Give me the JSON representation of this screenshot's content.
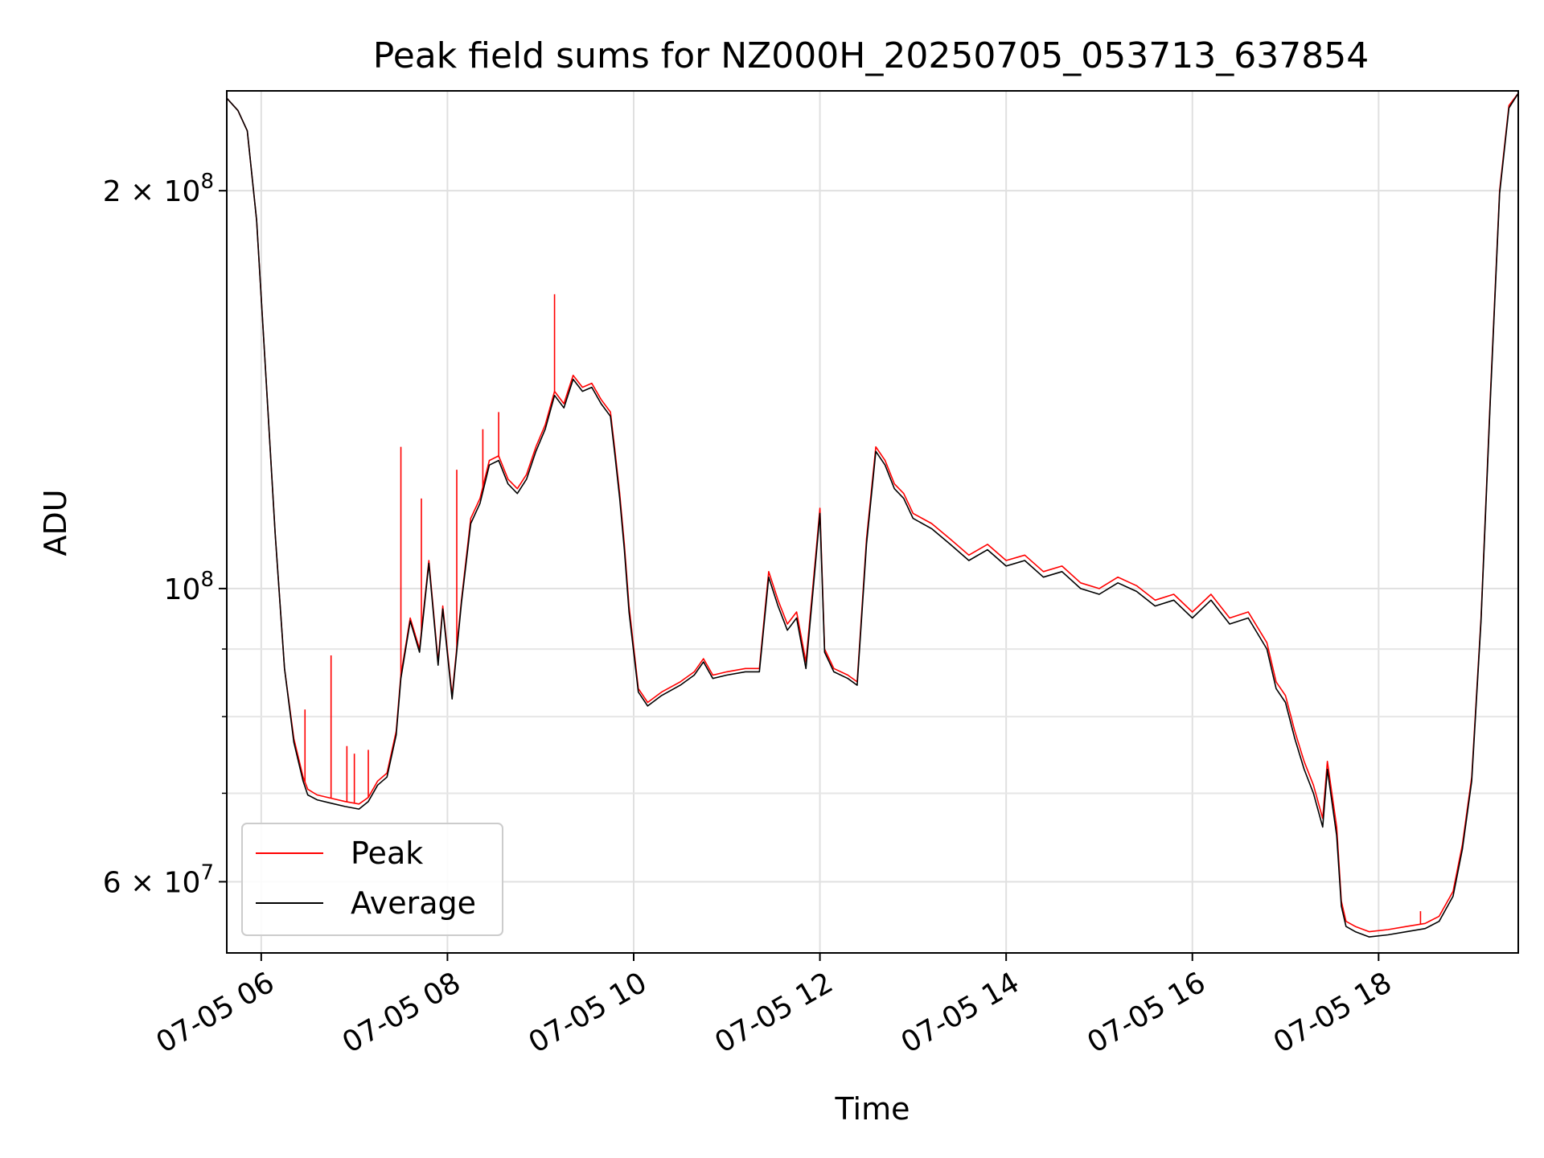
{
  "chart_data": {
    "type": "line",
    "title": "Peak field sums for NZ000H_20250705_053713_637854",
    "xlabel": "Time",
    "ylabel": "ADU",
    "x_unit": "hours of 2025-07-05 (fractional)",
    "xlim": [
      5.63,
      19.5
    ],
    "ylim": [
      53000000,
      238000000
    ],
    "yscale": "log",
    "grid": true,
    "legend_position": "lower-left",
    "x_ticks": [
      {
        "value": 6,
        "label": "07-05 06"
      },
      {
        "value": 8,
        "label": "07-05 08"
      },
      {
        "value": 10,
        "label": "07-05 10"
      },
      {
        "value": 12,
        "label": "07-05 12"
      },
      {
        "value": 14,
        "label": "07-05 14"
      },
      {
        "value": 16,
        "label": "07-05 16"
      },
      {
        "value": 18,
        "label": "07-05 18"
      }
    ],
    "y_major_ticks": [
      {
        "value": 60000000,
        "base": "6 × 10",
        "exp": "7"
      },
      {
        "value": 100000000,
        "base": "10",
        "exp": "8"
      },
      {
        "value": 200000000,
        "base": "2 × 10",
        "exp": "8"
      }
    ],
    "y_minor_ticks": [
      70000000,
      80000000,
      90000000
    ],
    "series": [
      {
        "name": "Peak",
        "color": "#ff0000",
        "points": [
          [
            5.63,
            235000000
          ],
          [
            5.75,
            230000000
          ],
          [
            5.85,
            222000000
          ],
          [
            5.95,
            190000000
          ],
          [
            6.05,
            145000000
          ],
          [
            6.15,
            110000000
          ],
          [
            6.25,
            87000000
          ],
          [
            6.35,
            77000000
          ],
          [
            6.45,
            72000000
          ],
          [
            6.5,
            70500000
          ],
          [
            6.6,
            69800000
          ],
          [
            6.75,
            69400000
          ],
          [
            6.9,
            69000000
          ],
          [
            7.05,
            68700000
          ],
          [
            7.15,
            69500000
          ],
          [
            7.25,
            71500000
          ],
          [
            7.35,
            72500000
          ],
          [
            7.45,
            78000000
          ],
          [
            7.5,
            86000000
          ],
          [
            7.6,
            95000000
          ],
          [
            7.7,
            90000000
          ],
          [
            7.8,
            105000000
          ],
          [
            7.9,
            88000000
          ],
          [
            7.95,
            97000000
          ],
          [
            8.05,
            83000000
          ],
          [
            8.15,
            98000000
          ],
          [
            8.25,
            113000000
          ],
          [
            8.35,
            117000000
          ],
          [
            8.45,
            125000000
          ],
          [
            8.55,
            126000000
          ],
          [
            8.65,
            121000000
          ],
          [
            8.75,
            119000000
          ],
          [
            8.85,
            122000000
          ],
          [
            8.95,
            128000000
          ],
          [
            9.05,
            133000000
          ],
          [
            9.15,
            141000000
          ],
          [
            9.25,
            138000000
          ],
          [
            9.35,
            145000000
          ],
          [
            9.45,
            142000000
          ],
          [
            9.55,
            143000000
          ],
          [
            9.65,
            139000000
          ],
          [
            9.75,
            136000000
          ],
          [
            9.8,
            127000000
          ],
          [
            9.85,
            118000000
          ],
          [
            9.9,
            108000000
          ],
          [
            9.95,
            97000000
          ],
          [
            10.05,
            84000000
          ],
          [
            10.15,
            82000000
          ],
          [
            10.3,
            83500000
          ],
          [
            10.5,
            85000000
          ],
          [
            10.65,
            86500000
          ],
          [
            10.75,
            88500000
          ],
          [
            10.85,
            86000000
          ],
          [
            11.0,
            86500000
          ],
          [
            11.2,
            87000000
          ],
          [
            11.35,
            87000000
          ],
          [
            11.45,
            103000000
          ],
          [
            11.55,
            98000000
          ],
          [
            11.65,
            94000000
          ],
          [
            11.75,
            96000000
          ],
          [
            11.85,
            88000000
          ],
          [
            11.95,
            105000000
          ],
          [
            12.0,
            115000000
          ],
          [
            12.05,
            90000000
          ],
          [
            12.15,
            87000000
          ],
          [
            12.3,
            86000000
          ],
          [
            12.4,
            85000000
          ],
          [
            12.5,
            109000000
          ],
          [
            12.6,
            128000000
          ],
          [
            12.7,
            125000000
          ],
          [
            12.8,
            120000000
          ],
          [
            12.9,
            118000000
          ],
          [
            13.0,
            114000000
          ],
          [
            13.2,
            112000000
          ],
          [
            13.4,
            109000000
          ],
          [
            13.6,
            106000000
          ],
          [
            13.8,
            108000000
          ],
          [
            14.0,
            105000000
          ],
          [
            14.2,
            106000000
          ],
          [
            14.4,
            103000000
          ],
          [
            14.6,
            104000000
          ],
          [
            14.8,
            101000000
          ],
          [
            15.0,
            100000000
          ],
          [
            15.2,
            102000000
          ],
          [
            15.4,
            100500000
          ],
          [
            15.6,
            98000000
          ],
          [
            15.8,
            99000000
          ],
          [
            16.0,
            96000000
          ],
          [
            16.2,
            99000000
          ],
          [
            16.4,
            95000000
          ],
          [
            16.6,
            96000000
          ],
          [
            16.8,
            91000000
          ],
          [
            16.9,
            85000000
          ],
          [
            17.0,
            83000000
          ],
          [
            17.1,
            78000000
          ],
          [
            17.2,
            74000000
          ],
          [
            17.3,
            71000000
          ],
          [
            17.4,
            67000000
          ],
          [
            17.45,
            74000000
          ],
          [
            17.55,
            66000000
          ],
          [
            17.6,
            58000000
          ],
          [
            17.65,
            56000000
          ],
          [
            17.75,
            55500000
          ],
          [
            17.9,
            55000000
          ],
          [
            18.1,
            55200000
          ],
          [
            18.3,
            55500000
          ],
          [
            18.5,
            55800000
          ],
          [
            18.65,
            56500000
          ],
          [
            18.8,
            59000000
          ],
          [
            18.9,
            64000000
          ],
          [
            19.0,
            72000000
          ],
          [
            19.1,
            95000000
          ],
          [
            19.2,
            140000000
          ],
          [
            19.3,
            200000000
          ],
          [
            19.4,
            232000000
          ],
          [
            19.5,
            237000000
          ]
        ],
        "spikes": [
          [
            6.47,
            81000000
          ],
          [
            6.75,
            89000000
          ],
          [
            6.92,
            76000000
          ],
          [
            7.0,
            75000000
          ],
          [
            7.15,
            75500000
          ],
          [
            7.5,
            128000000
          ],
          [
            7.72,
            117000000
          ],
          [
            8.1,
            123000000
          ],
          [
            8.38,
            132000000
          ],
          [
            8.55,
            136000000
          ],
          [
            9.15,
            167000000
          ],
          [
            18.45,
            57000000
          ]
        ]
      },
      {
        "name": "Average",
        "color": "#000000",
        "points": [
          [
            5.63,
            235000000
          ],
          [
            5.75,
            230000000
          ],
          [
            5.85,
            222000000
          ],
          [
            5.95,
            190000000
          ],
          [
            6.05,
            145000000
          ],
          [
            6.15,
            110000000
          ],
          [
            6.25,
            87000000
          ],
          [
            6.35,
            76500000
          ],
          [
            6.45,
            71500000
          ],
          [
            6.5,
            69800000
          ],
          [
            6.6,
            69200000
          ],
          [
            6.75,
            68800000
          ],
          [
            6.9,
            68400000
          ],
          [
            7.05,
            68100000
          ],
          [
            7.15,
            69000000
          ],
          [
            7.25,
            71000000
          ],
          [
            7.35,
            72000000
          ],
          [
            7.45,
            77500000
          ],
          [
            7.5,
            85500000
          ],
          [
            7.6,
            94500000
          ],
          [
            7.7,
            89500000
          ],
          [
            7.8,
            104500000
          ],
          [
            7.9,
            87500000
          ],
          [
            7.95,
            96500000
          ],
          [
            8.05,
            82500000
          ],
          [
            8.15,
            97500000
          ],
          [
            8.25,
            112000000
          ],
          [
            8.35,
            116000000
          ],
          [
            8.45,
            124000000
          ],
          [
            8.55,
            125000000
          ],
          [
            8.65,
            120000000
          ],
          [
            8.75,
            118000000
          ],
          [
            8.85,
            121000000
          ],
          [
            8.95,
            127000000
          ],
          [
            9.05,
            132000000
          ],
          [
            9.15,
            140000000
          ],
          [
            9.25,
            137000000
          ],
          [
            9.35,
            144000000
          ],
          [
            9.45,
            141000000
          ],
          [
            9.55,
            142000000
          ],
          [
            9.65,
            138000000
          ],
          [
            9.75,
            135000000
          ],
          [
            9.8,
            126000000
          ],
          [
            9.85,
            117000000
          ],
          [
            9.9,
            107000000
          ],
          [
            9.95,
            96000000
          ],
          [
            10.05,
            83500000
          ],
          [
            10.15,
            81500000
          ],
          [
            10.3,
            83000000
          ],
          [
            10.5,
            84500000
          ],
          [
            10.65,
            86000000
          ],
          [
            10.75,
            88000000
          ],
          [
            10.85,
            85500000
          ],
          [
            11.0,
            86000000
          ],
          [
            11.2,
            86500000
          ],
          [
            11.35,
            86500000
          ],
          [
            11.45,
            102000000
          ],
          [
            11.55,
            97000000
          ],
          [
            11.65,
            93000000
          ],
          [
            11.75,
            95000000
          ],
          [
            11.85,
            87000000
          ],
          [
            11.95,
            104000000
          ],
          [
            12.0,
            114000000
          ],
          [
            12.05,
            89500000
          ],
          [
            12.15,
            86500000
          ],
          [
            12.3,
            85500000
          ],
          [
            12.4,
            84500000
          ],
          [
            12.5,
            108000000
          ],
          [
            12.6,
            127000000
          ],
          [
            12.7,
            124000000
          ],
          [
            12.8,
            119000000
          ],
          [
            12.9,
            117000000
          ],
          [
            13.0,
            113000000
          ],
          [
            13.2,
            111000000
          ],
          [
            13.4,
            108000000
          ],
          [
            13.6,
            105000000
          ],
          [
            13.8,
            107000000
          ],
          [
            14.0,
            104000000
          ],
          [
            14.2,
            105000000
          ],
          [
            14.4,
            102000000
          ],
          [
            14.6,
            103000000
          ],
          [
            14.8,
            100000000
          ],
          [
            15.0,
            99000000
          ],
          [
            15.2,
            101000000
          ],
          [
            15.4,
            99500000
          ],
          [
            15.6,
            97000000
          ],
          [
            15.8,
            98000000
          ],
          [
            16.0,
            95000000
          ],
          [
            16.2,
            98000000
          ],
          [
            16.4,
            94000000
          ],
          [
            16.6,
            95000000
          ],
          [
            16.8,
            90000000
          ],
          [
            16.9,
            84000000
          ],
          [
            17.0,
            82000000
          ],
          [
            17.1,
            77000000
          ],
          [
            17.2,
            73000000
          ],
          [
            17.3,
            70000000
          ],
          [
            17.4,
            66000000
          ],
          [
            17.45,
            73000000
          ],
          [
            17.55,
            65000000
          ],
          [
            17.6,
            57500000
          ],
          [
            17.65,
            55500000
          ],
          [
            17.75,
            55000000
          ],
          [
            17.9,
            54500000
          ],
          [
            18.1,
            54700000
          ],
          [
            18.3,
            55000000
          ],
          [
            18.5,
            55300000
          ],
          [
            18.65,
            56000000
          ],
          [
            18.8,
            58500000
          ],
          [
            18.9,
            63500000
          ],
          [
            19.0,
            71500000
          ],
          [
            19.1,
            94500000
          ],
          [
            19.2,
            139000000
          ],
          [
            19.3,
            199000000
          ],
          [
            19.4,
            231000000
          ],
          [
            19.5,
            237000000
          ]
        ]
      }
    ]
  }
}
